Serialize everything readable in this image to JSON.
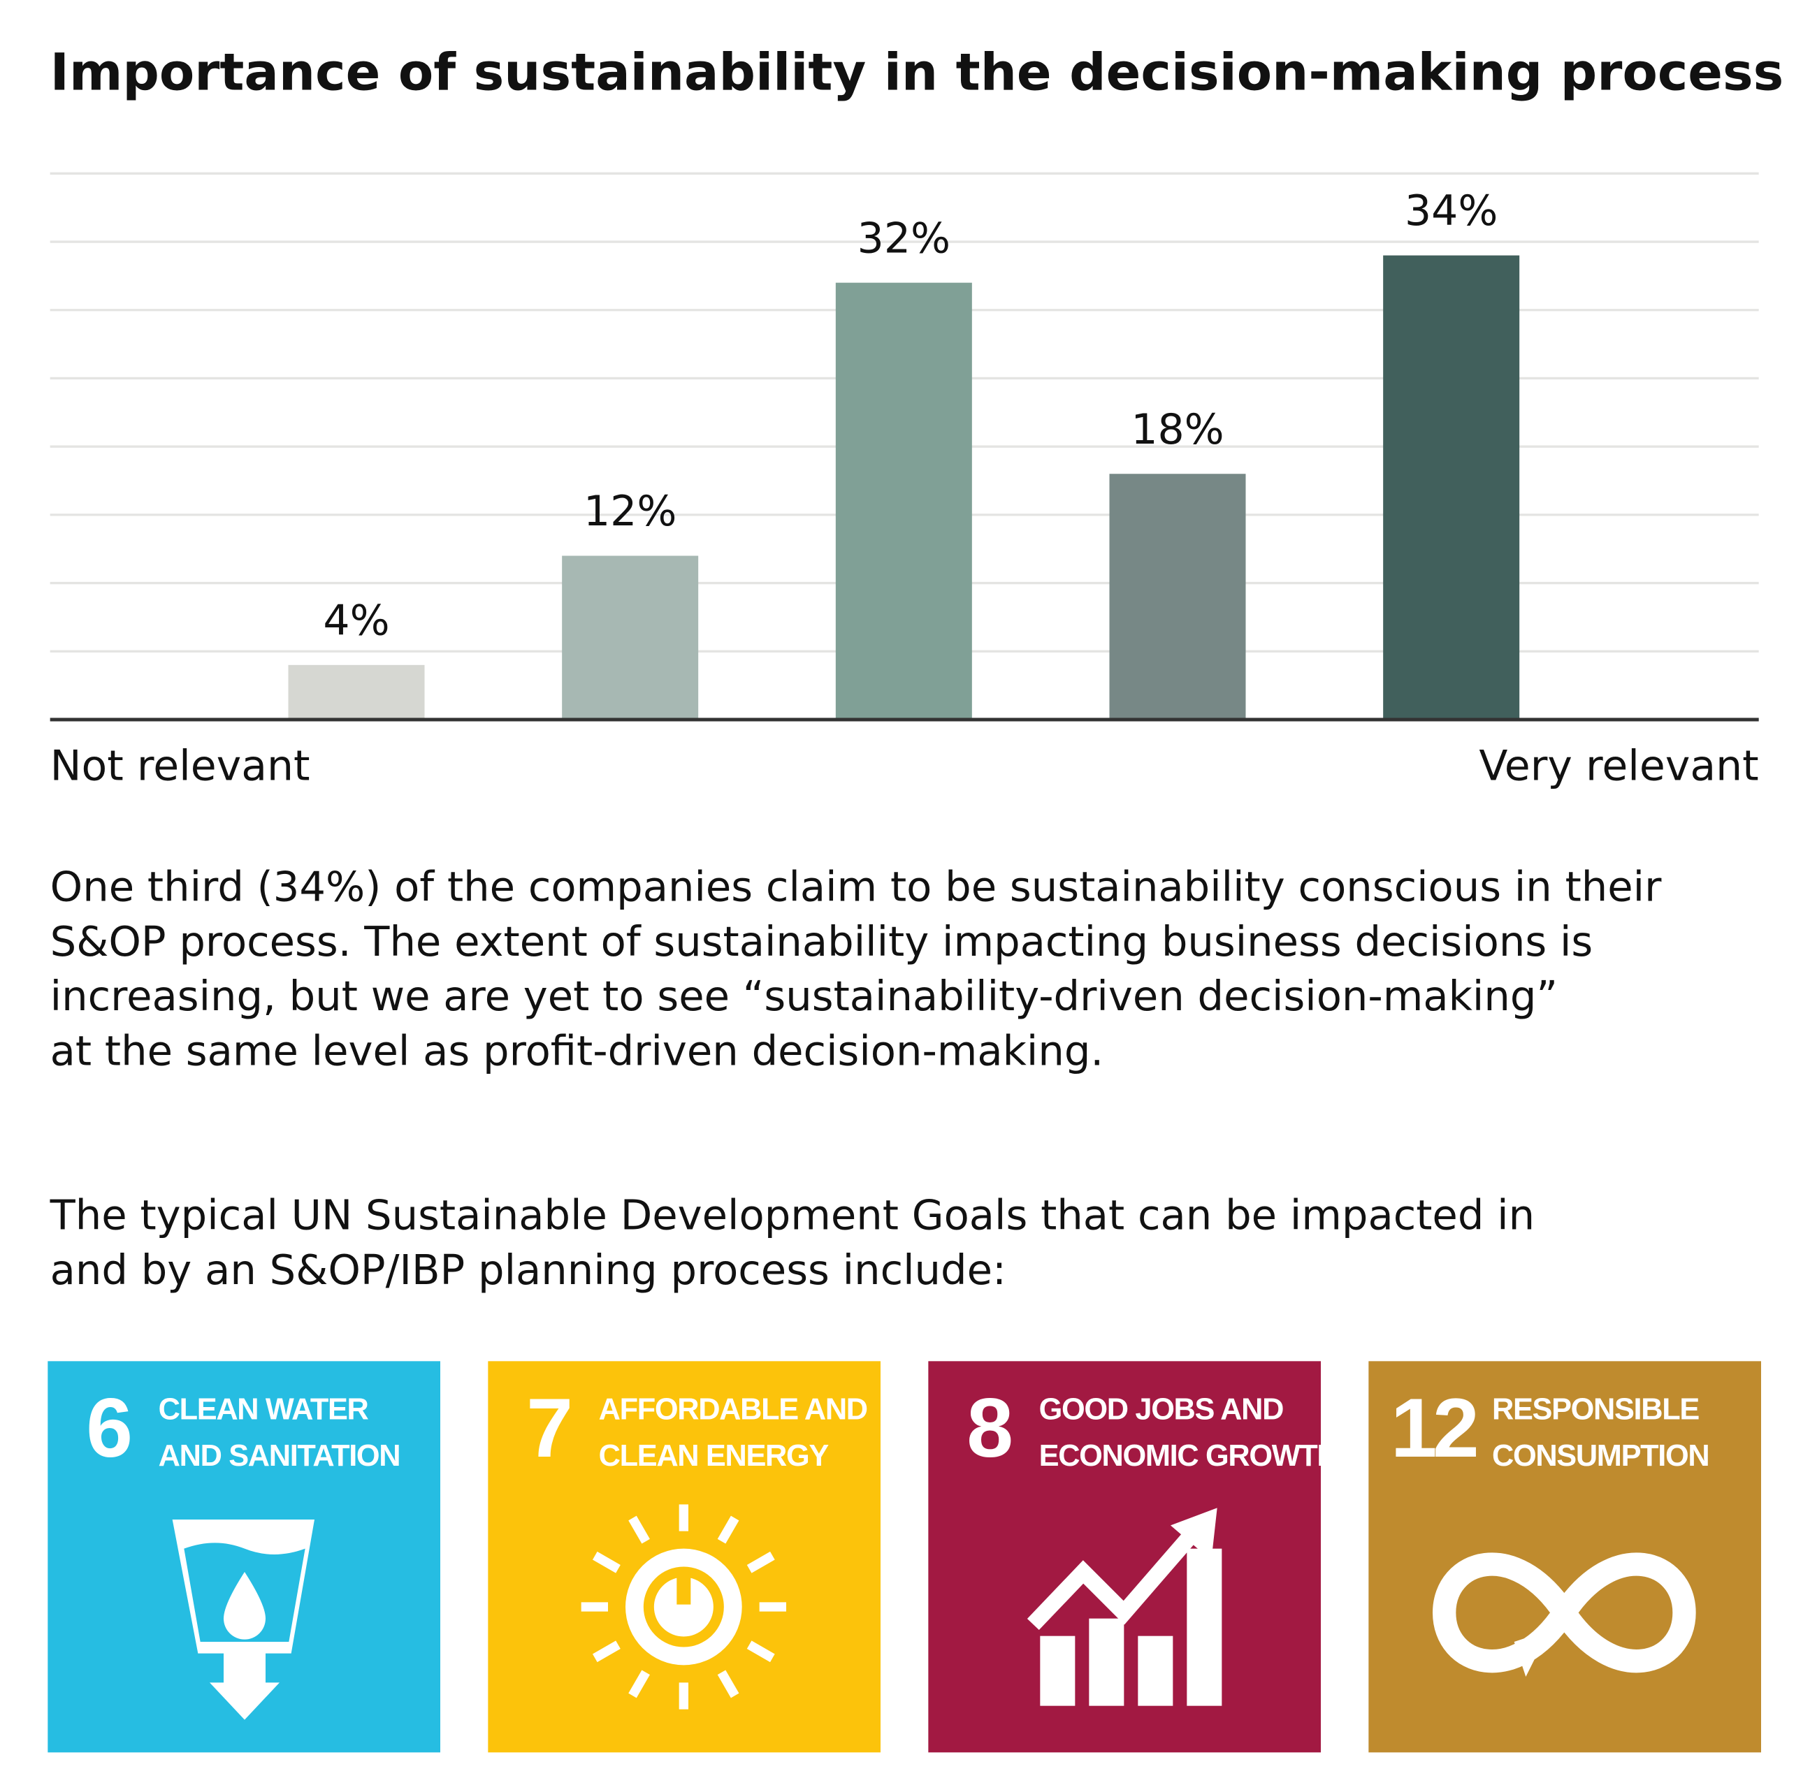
{
  "chart_data": {
    "type": "bar",
    "title": "Importance of sustainability in the decision-making process",
    "categories": [
      null,
      null,
      null,
      null,
      null
    ],
    "values": [
      4,
      12,
      32,
      18,
      34
    ],
    "value_labels": [
      "4%",
      "12%",
      "32%",
      "18%",
      "34%"
    ],
    "colors": [
      "#d6d7d2",
      "#a7b8b3",
      "#80a096",
      "#778886",
      "#41605c"
    ],
    "ylim": [
      0,
      40
    ],
    "yticks": [
      0,
      5,
      10,
      15,
      20,
      25,
      30,
      35,
      40
    ],
    "grid": true,
    "x_axis_labels": [
      "Not relevant",
      "Very relevant"
    ]
  },
  "paragraphs": [
    {
      "lines": [
        "One third (34%) of the companies claim to be sustainability conscious in their",
        "S&OP process. The extent of sustainability impacting business decisions is",
        "increasing, but we are yet to see “sustainability-driven decision-making”",
        "at the same level as profit-driven decision-making."
      ]
    },
    {
      "lines": [
        "The typical UN Sustainable Development Goals that can be impacted in",
        "and by an S&OP/IBP planning process include:"
      ]
    }
  ],
  "goals": [
    {
      "number": 6,
      "lines": [
        "CLEAN WATER",
        "AND SANITATION"
      ],
      "color": "#26bde2"
    },
    {
      "number": 7,
      "lines": [
        "AFFORDABLE AND",
        "CLEAN ENERGY"
      ],
      "color": "#fcc30b"
    },
    {
      "number": 8,
      "lines": [
        "GOOD JOBS AND",
        "ECONOMIC GROWTH"
      ],
      "color": "#a21942"
    },
    {
      "number": 12,
      "lines": [
        "RESPONSIBLE",
        "CONSUMPTION"
      ],
      "color": "#bf8b2e"
    }
  ]
}
